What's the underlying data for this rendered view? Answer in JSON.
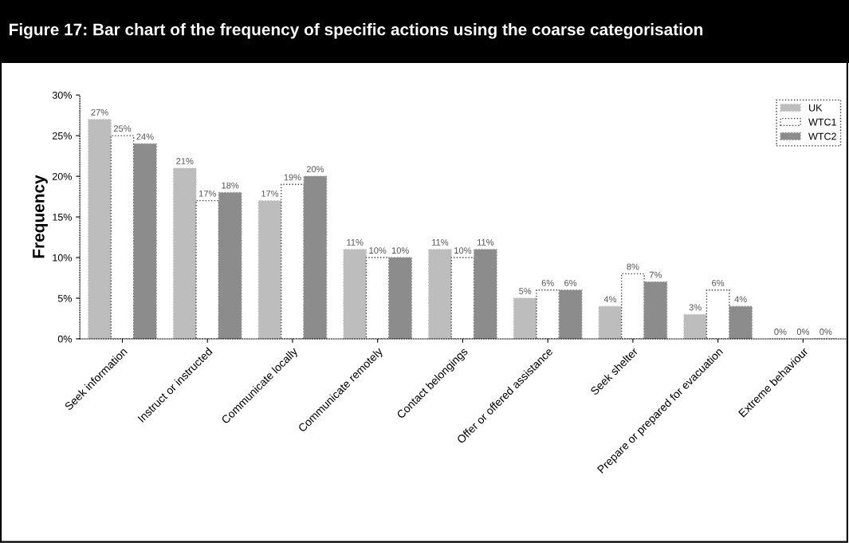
{
  "chart_data": {
    "type": "bar",
    "title": "Figure 17: Bar chart of the frequency of specific actions using the coarse categorisation",
    "ylabel": "Frequency",
    "categories": [
      "Seek information",
      "Instruct or instructed",
      "Communicate locally",
      "Communicate remotely",
      "Contact belongings",
      "Offer or offered assistance",
      "Seek shelter",
      "Prepare or prepared for evacuation",
      "Extreme behaviour"
    ],
    "series": [
      {
        "name": "UK",
        "color": "#bdbdbd",
        "values": [
          27,
          21,
          17,
          11,
          11,
          5,
          4,
          3,
          0
        ],
        "value_labels": [
          "27%",
          "21%",
          "17%",
          "11%",
          "11%",
          "5%",
          "4%",
          "3%",
          "0%"
        ]
      },
      {
        "name": "WTC1",
        "color": "#ffffff",
        "values": [
          25,
          17,
          19,
          10,
          10,
          6,
          8,
          6,
          0
        ],
        "value_labels": [
          "25%",
          "17%",
          "19%",
          "10%",
          "10%",
          "6%",
          "8%",
          "6%",
          "0%"
        ]
      },
      {
        "name": "WTC2",
        "color": "#8c8c8c",
        "values": [
          24,
          18,
          20,
          10,
          11,
          6,
          7,
          4,
          0
        ],
        "value_labels": [
          "24%",
          "18%",
          "20%",
          "10%",
          "11%",
          "6%",
          "7%",
          "4%",
          "0%"
        ]
      }
    ],
    "ylim": [
      0,
      30
    ],
    "yticks": [
      {
        "value": 0,
        "label": "0%"
      },
      {
        "value": 5,
        "label": "5%"
      },
      {
        "value": 10,
        "label": "10%"
      },
      {
        "value": 15,
        "label": "15%"
      },
      {
        "value": 20,
        "label": "20%"
      },
      {
        "value": 25,
        "label": "25%"
      },
      {
        "value": 30,
        "label": "30%"
      }
    ],
    "grid": false,
    "legend": "top right"
  }
}
